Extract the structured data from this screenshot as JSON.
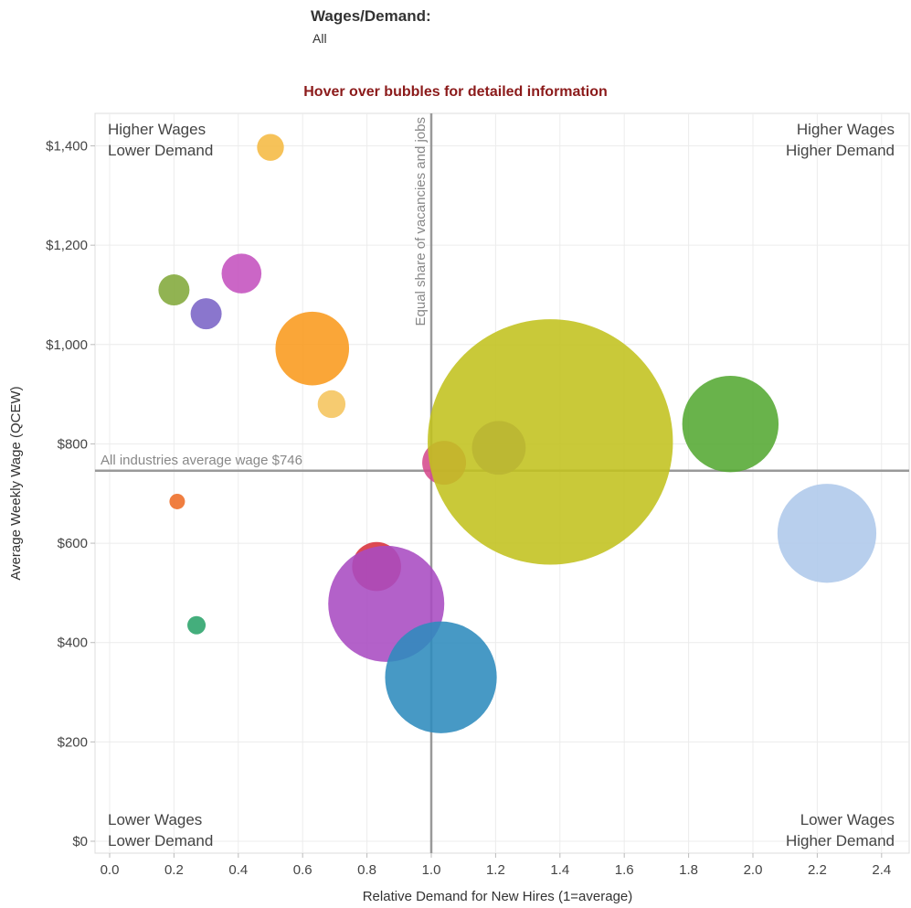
{
  "filter": {
    "label": "Wages/Demand:",
    "value": "All"
  },
  "hint": "Hover over bubbles for detailed information",
  "chart_data": {
    "type": "scatter",
    "subtype": "bubble",
    "xlabel": "Relative Demand for New Hires (1=average)",
    "ylabel": "Average Weekly Wage (QCEW)",
    "xlim": [
      -0.04,
      2.48
    ],
    "ylim": [
      -15,
      1480
    ],
    "xticks": [
      0.0,
      0.2,
      0.4,
      0.6,
      0.8,
      1.0,
      1.2,
      1.4,
      1.6,
      1.8,
      2.0,
      2.2,
      2.4
    ],
    "xtick_labels": [
      "0.0",
      "0.2",
      "0.4",
      "0.6",
      "0.8",
      "1.0",
      "1.2",
      "1.4",
      "1.6",
      "1.8",
      "2.0",
      "2.2",
      "2.4"
    ],
    "yticks": [
      0,
      200,
      400,
      600,
      800,
      1000,
      1200,
      1400
    ],
    "ytick_labels": [
      "$0",
      "$200",
      "$400",
      "$600",
      "$800",
      "$1,000",
      "$1,200",
      "$1,400"
    ],
    "grid": true,
    "reference_lines": [
      {
        "axis": "y",
        "value": 746,
        "label": "All industries average wage $746"
      },
      {
        "axis": "x",
        "value": 1.0,
        "label": "Equal share of vacancies and jobs"
      }
    ],
    "quadrant_labels": {
      "top_left": [
        "Higher Wages",
        "Lower Demand"
      ],
      "top_right": [
        "Higher Wages",
        "Higher Demand"
      ],
      "bottom_left": [
        "Lower Wages",
        "Lower Demand"
      ],
      "bottom_right": [
        "Lower Wages",
        "Higher Demand"
      ]
    },
    "points": [
      {
        "x": 0.5,
        "y": 1397,
        "size": 1.5,
        "color": "#f5b942"
      },
      {
        "x": 0.41,
        "y": 1143,
        "size": 3.3,
        "color": "#c451be"
      },
      {
        "x": 0.2,
        "y": 1110,
        "size": 2.0,
        "color": "#82a83a"
      },
      {
        "x": 0.3,
        "y": 1062,
        "size": 2.0,
        "color": "#7a63c6"
      },
      {
        "x": 0.63,
        "y": 992,
        "size": 11.3,
        "color": "#f99a1c"
      },
      {
        "x": 0.69,
        "y": 880,
        "size": 1.6,
        "color": "#f5c45c"
      },
      {
        "x": 0.21,
        "y": 684,
        "size": 0.5,
        "color": "#ee6c25"
      },
      {
        "x": 0.27,
        "y": 435,
        "size": 0.7,
        "color": "#2aa36a"
      },
      {
        "x": 1.04,
        "y": 762,
        "size": 4.0,
        "color": "#d54a8c"
      },
      {
        "x": 1.21,
        "y": 792,
        "size": 6.0,
        "color": "#8662c1"
      },
      {
        "x": 1.37,
        "y": 804,
        "size": 125,
        "color": "#c2c21e"
      },
      {
        "x": 1.93,
        "y": 840,
        "size": 19.3,
        "color": "#54a832"
      },
      {
        "x": 2.23,
        "y": 620,
        "size": 20.3,
        "color": "#aec8ea"
      },
      {
        "x": 0.83,
        "y": 553,
        "size": 5.0,
        "color": "#d8303a"
      },
      {
        "x": 0.86,
        "y": 478,
        "size": 28.0,
        "color": "#a84bc2"
      },
      {
        "x": 1.03,
        "y": 330,
        "size": 25.9,
        "color": "#2e8bbd"
      }
    ]
  }
}
